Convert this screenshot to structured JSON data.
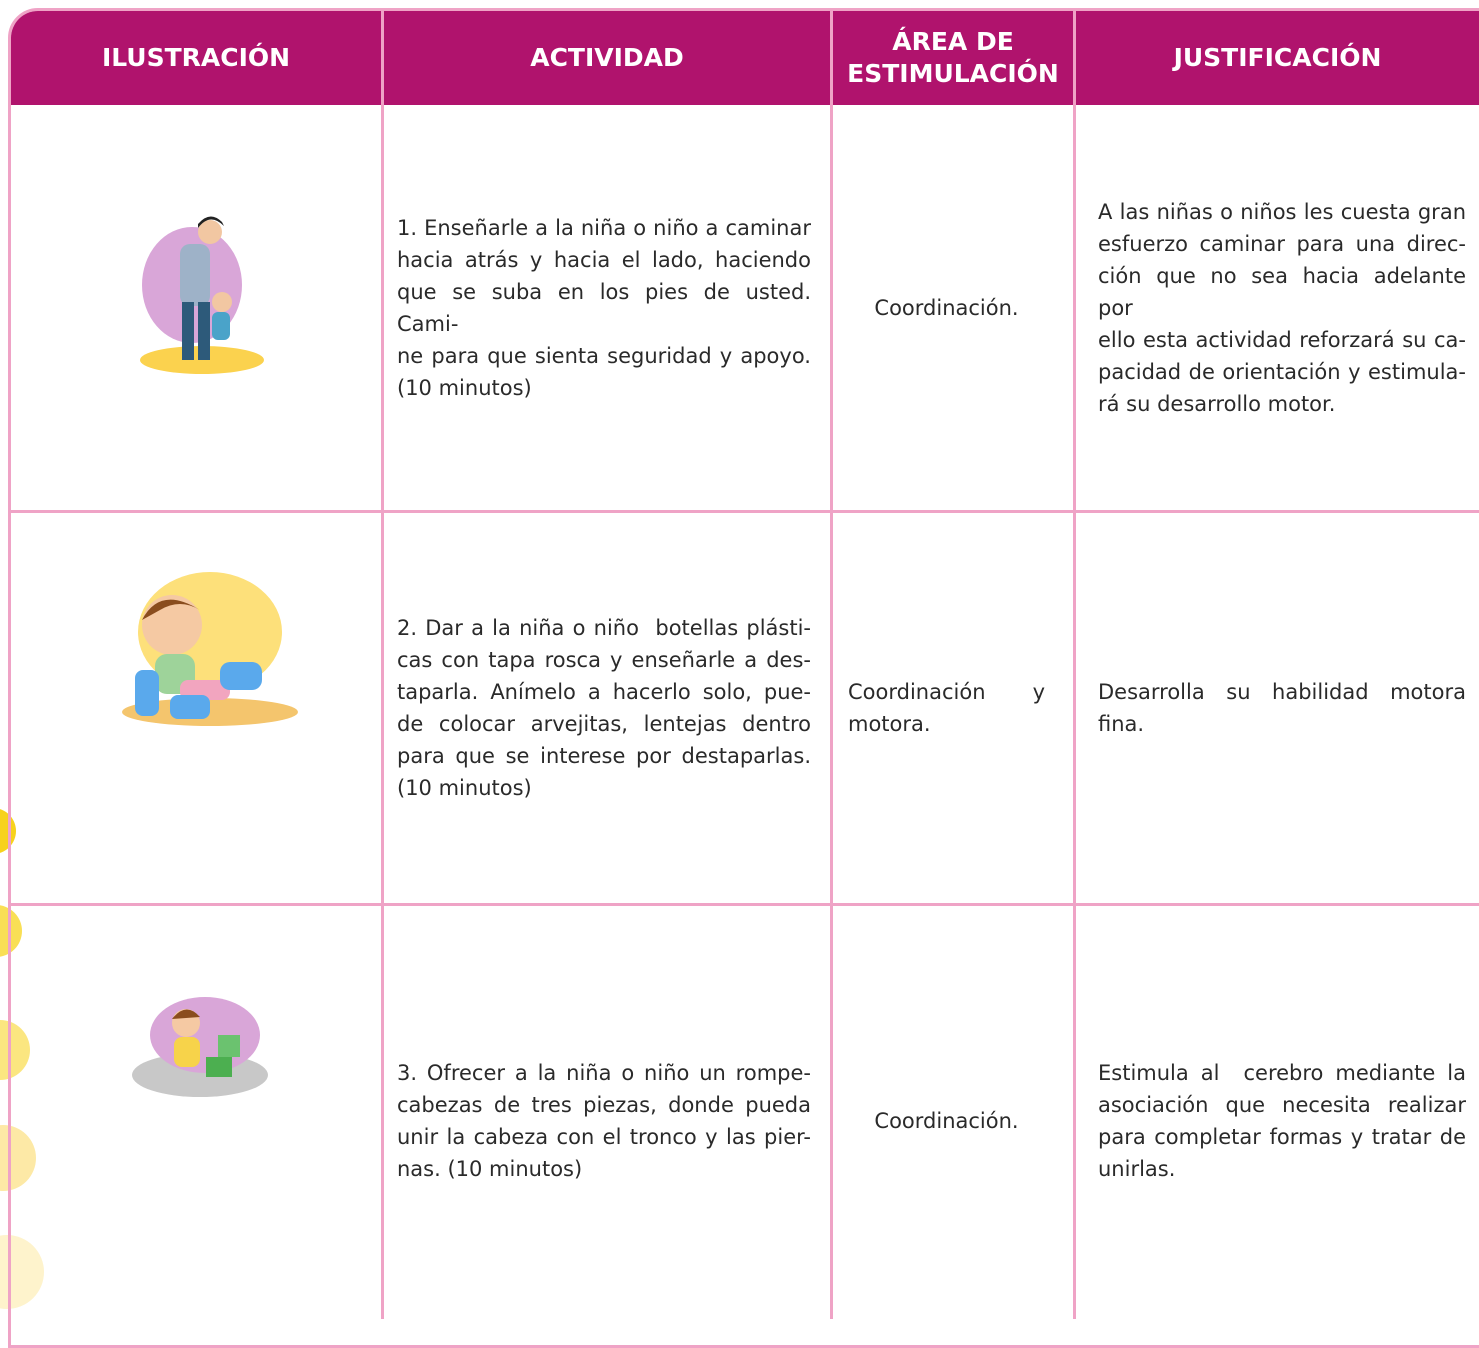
{
  "table": {
    "columns": [
      [
        "ILUSTRACIÓN"
      ],
      [
        "ACTIVIDAD"
      ],
      [
        "ÁREA DE",
        "ESTIMULACIÓN"
      ],
      [
        "JUSTIFICACIÓN"
      ]
    ],
    "rows": [
      {
        "activity": [
          "1. Enseñarle a la niña o niño a caminar",
          "hacia atrás y hacia el lado, haciendo",
          "que se suba en los pies de usted. Cami-",
          "ne para que sienta seguridad y apoyo.",
          "(10 minutos)"
        ],
        "area": [
          "Coordinación."
        ],
        "justification": [
          "A las niñas o niños les cuesta gran",
          "esfuerzo caminar para una direc-",
          "ción que no sea hacia adelante por",
          "ello esta actividad reforzará su ca-",
          "pacidad de orientación y estimula-",
          "rá su desarrollo motor."
        ]
      },
      {
        "activity": [
          "2. Dar a la niña o niño  botellas plásti-",
          "cas con tapa rosca y enseñarle a des-",
          "taparla. Anímelo a hacerlo solo, pue-",
          "de colocar arvejitas, lentejas dentro",
          "para que se interese por destaparlas.",
          "(10 minutos)"
        ],
        "area": [
          "Coordinación y",
          "motora."
        ],
        "justification": [
          "Desarrolla su habilidad motora",
          "fina."
        ]
      },
      {
        "activity": [
          "3. Ofrecer a la niña o niño un rompe-",
          "cabezas de tres piezas, donde pueda",
          "unir la cabeza con el tronco y las pier-",
          "nas. (10 minutos)"
        ],
        "area": [
          "Coordinación."
        ],
        "justification": [
          "Estimula al  cerebro mediante la",
          "asociación que necesita realizar",
          "para completar formas y tratar de",
          "unirlas."
        ]
      }
    ]
  }
}
